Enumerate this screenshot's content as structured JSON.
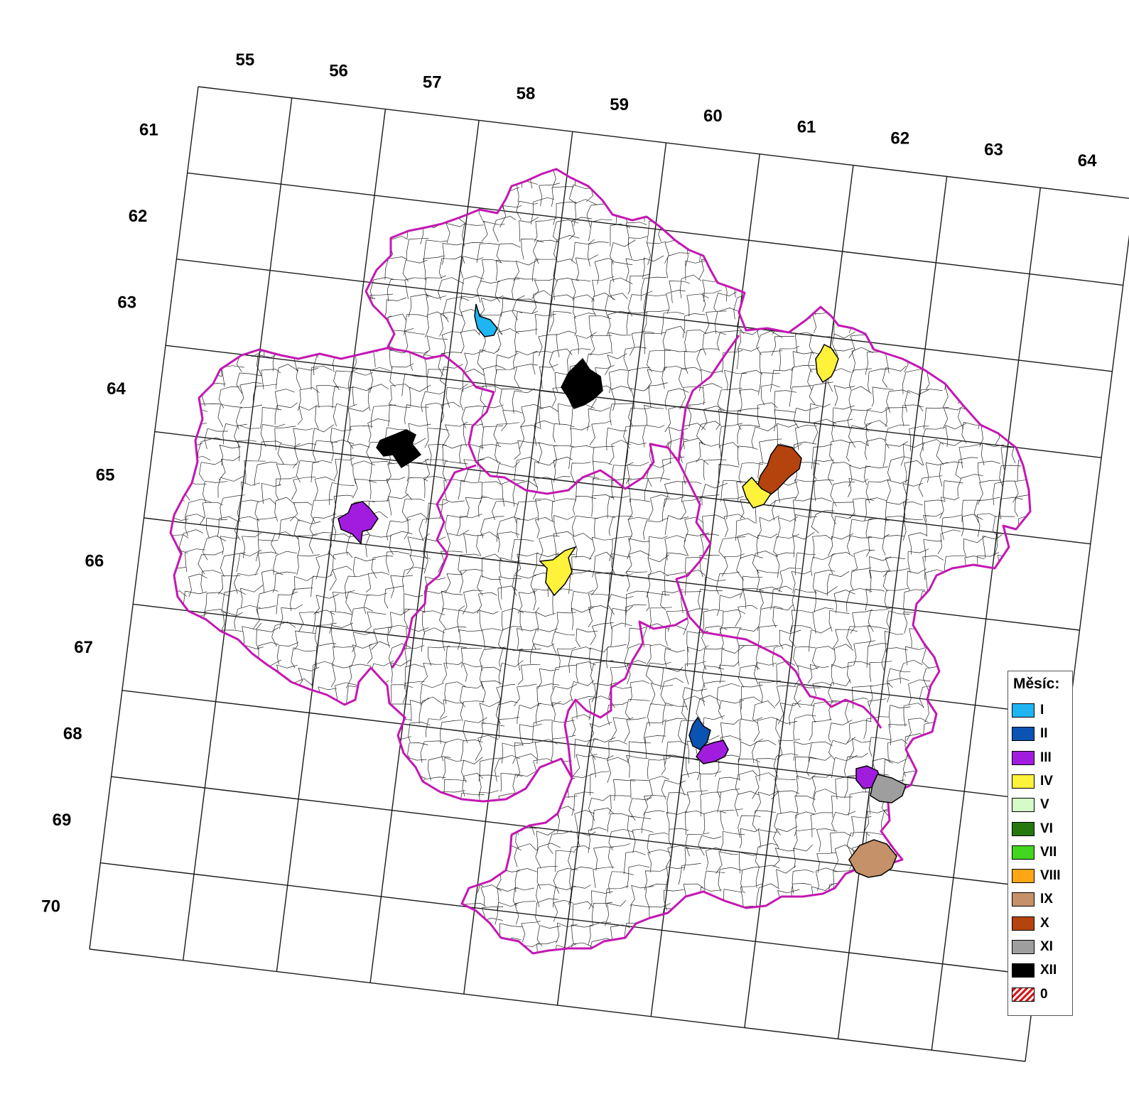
{
  "columns": [
    "55",
    "56",
    "57",
    "58",
    "59",
    "60",
    "61",
    "62",
    "63",
    "64"
  ],
  "rows": [
    "61",
    "62",
    "63",
    "64",
    "65",
    "66",
    "67",
    "68",
    "69",
    "70"
  ],
  "legend": {
    "title": "Měsíc:",
    "items": [
      {
        "label": "I",
        "color": "#1fb4f2"
      },
      {
        "label": "II",
        "color": "#0b53b3"
      },
      {
        "label": "III",
        "color": "#a21ce0"
      },
      {
        "label": "IV",
        "color": "#fff23b"
      },
      {
        "label": "V",
        "color": "#d4fbc8"
      },
      {
        "label": "VI",
        "color": "#24780e"
      },
      {
        "label": "VII",
        "color": "#43d61f"
      },
      {
        "label": "VIII",
        "color": "#ffa615"
      },
      {
        "label": "IX",
        "color": "#c49168"
      },
      {
        "label": "X",
        "color": "#b5430d"
      },
      {
        "label": "XI",
        "color": "#9e9e9e"
      },
      {
        "label": "XII",
        "color": "#000000"
      },
      {
        "label": "0",
        "color": "hatched-red"
      }
    ]
  },
  "colors": {
    "region_border": "#c318b2",
    "grid": "#1a1a1a"
  }
}
